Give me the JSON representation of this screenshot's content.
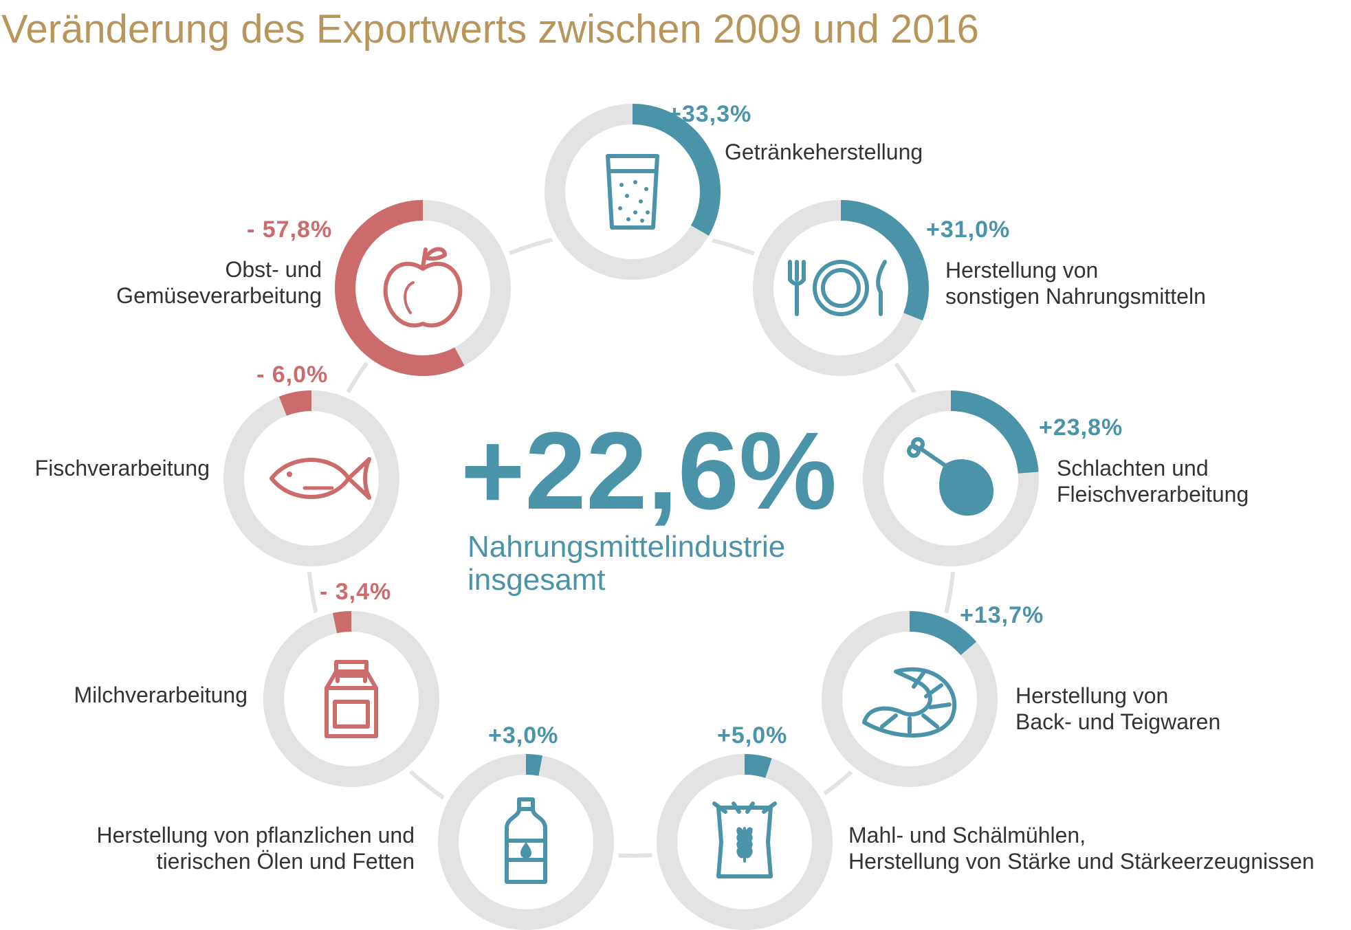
{
  "title": "Veränderung des Exportwerts zwischen 2009 und 2016",
  "colors": {
    "positive": "#4a93a8",
    "negative": "#cc6b6b",
    "track": "#e3e3e3",
    "title": "#b8955a"
  },
  "center": {
    "value": "+22,6%",
    "label_line1": "Nahrungsmittelindustrie",
    "label_line2": "insgesamt"
  },
  "chart_data": {
    "type": "donut-set",
    "title": "Veränderung des Exportwerts zwischen 2009 und 2016",
    "total": {
      "label": "Nahrungsmittelindustrie insgesamt",
      "value": 22.6
    },
    "series": [
      {
        "name": "Getränkeherstellung",
        "value": 33.3,
        "label": "+33,3%",
        "lines": [
          "Getränkeherstellung"
        ],
        "icon": "glass-icon"
      },
      {
        "name": "Herstellung von sonstigen Nahrungsmitteln",
        "value": 31.0,
        "label": "+31,0%",
        "lines": [
          "Herstellung von",
          "sonstigen Nahrungsmitteln"
        ],
        "icon": "plate-icon"
      },
      {
        "name": "Schlachten und Fleischverarbeitung",
        "value": 23.8,
        "label": "+23,8%",
        "lines": [
          "Schlachten und",
          "Fleischverarbeitung"
        ],
        "icon": "drumstick-icon"
      },
      {
        "name": "Herstellung von Back- und Teigwaren",
        "value": 13.7,
        "label": "+13,7%",
        "lines": [
          "Herstellung von",
          "Back- und Teigwaren"
        ],
        "icon": "croissant-icon"
      },
      {
        "name": "Mahl- und Schälmühlen, Herstellung von Stärke und Stärkeerzeugnissen",
        "value": 5.0,
        "label": "+5,0%",
        "lines": [
          "Mahl- und Schälmühlen,",
          "Herstellung von Stärke und Stärkeerzeugnissen"
        ],
        "icon": "flour-sack-icon"
      },
      {
        "name": "Herstellung von pflanzlichen und tierischen Ölen und Fetten",
        "value": 3.0,
        "label": "+3,0%",
        "lines": [
          "Herstellung von pflanzlichen und",
          "tierischen Ölen und Fetten"
        ],
        "icon": "bottle-icon"
      },
      {
        "name": "Milchverarbeitung",
        "value": -3.4,
        "label": "- 3,4%",
        "lines": [
          "Milchverarbeitung"
        ],
        "icon": "milk-carton-icon"
      },
      {
        "name": "Fischverarbeitung",
        "value": -6.0,
        "label": "- 6,0%",
        "lines": [
          "Fischverarbeitung"
        ],
        "icon": "fish-icon"
      },
      {
        "name": "Obst- und Gemüseverarbeitung",
        "value": -57.8,
        "label": "- 57,8%",
        "lines": [
          "Obst- und",
          "Gemüseverarbeitung"
        ],
        "icon": "apple-icon"
      }
    ]
  }
}
